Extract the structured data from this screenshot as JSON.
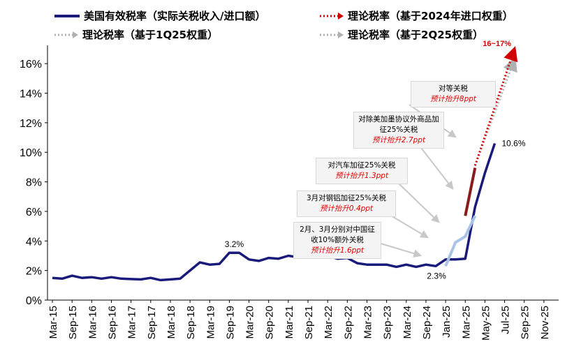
{
  "chart_data": {
    "type": "line",
    "yaxis": {
      "ticks": [
        "0%",
        "2%",
        "4%",
        "6%",
        "8%",
        "10%",
        "12%",
        "14%",
        "16%"
      ],
      "ylim": [
        0,
        17
      ]
    },
    "xaxis": {
      "tick_labels": [
        "Mar-15",
        "Sep-15",
        "Mar-16",
        "Sep-16",
        "Mar-17",
        "Sep-17",
        "Mar-18",
        "Sep-18",
        "Mar-19",
        "Sep-19",
        "Mar-20",
        "Sep-20",
        "Mar-21",
        "Sep-21",
        "Mar-22",
        "Sep-22",
        "Mar-23",
        "Sep-23",
        "Mar-24",
        "Sep-24",
        "Jan-25",
        "Mar-25",
        "May-25",
        "Jul-25",
        "Sep-25",
        "Nov-25"
      ]
    },
    "legend": {
      "effective": "美国有效税率（实际关税收入/进口额）",
      "theory2024": "理论税率（基于2024年进口权重）",
      "theory1q25": "理论税率（基于1Q25权重）",
      "theory2q25": "理论税率（基于2Q25权重）"
    },
    "series": [
      {
        "name": "美国有效税率（实际关税收入/进口额）",
        "color": "#1a1a7a",
        "points": [
          [
            0,
            1.5
          ],
          [
            1,
            1.45
          ],
          [
            2,
            1.65
          ],
          [
            3,
            1.5
          ],
          [
            4,
            1.55
          ],
          [
            5,
            1.45
          ],
          [
            6,
            1.55
          ],
          [
            7,
            1.45
          ],
          [
            8,
            1.42
          ],
          [
            9,
            1.4
          ],
          [
            10,
            1.5
          ],
          [
            11,
            1.35
          ],
          [
            12,
            1.4
          ],
          [
            13,
            1.45
          ],
          [
            14,
            2.0
          ],
          [
            15,
            2.55
          ],
          [
            16,
            2.4
          ],
          [
            17,
            2.45
          ],
          [
            18,
            3.2
          ],
          [
            19,
            3.2
          ],
          [
            20,
            2.75
          ],
          [
            21,
            2.65
          ],
          [
            22,
            2.85
          ],
          [
            23,
            2.8
          ],
          [
            24,
            3.0
          ],
          [
            25,
            2.9
          ],
          [
            26,
            3.0
          ],
          [
            27,
            3.05
          ],
          [
            28,
            3.0
          ],
          [
            29,
            2.8
          ],
          [
            30,
            2.85
          ],
          [
            31,
            2.5
          ],
          [
            32,
            2.4
          ],
          [
            33,
            2.4
          ],
          [
            34,
            2.4
          ],
          [
            35,
            2.25
          ],
          [
            36,
            2.4
          ],
          [
            37,
            2.25
          ],
          [
            38,
            2.4
          ],
          [
            39,
            2.3
          ],
          [
            40,
            2.75
          ],
          [
            41,
            2.75
          ],
          [
            42,
            2.8
          ],
          [
            43,
            6.3
          ],
          [
            44,
            8.6
          ],
          [
            45,
            10.6
          ]
        ]
      },
      {
        "name": "理论税率（基于1Q25权重）",
        "color": "#a9c3e8",
        "points": [
          [
            40,
            2.3
          ],
          [
            41,
            3.9
          ],
          [
            42,
            4.3
          ],
          [
            43,
            5.7
          ]
        ]
      },
      {
        "name": "理论税率（基于2024年进口权重）",
        "color": "#8b1a1a",
        "points": [
          [
            42,
            5.7
          ],
          [
            43,
            8.95
          ]
        ]
      },
      {
        "name": "理论税率（基于2Q25权重）",
        "color": "#b0b0b0",
        "points": [
          [
            43,
            9.1
          ],
          [
            47,
            16.3
          ]
        ]
      },
      {
        "name": "理论税率（基于2024年进口权重）projection",
        "color": "#d00000",
        "points": [
          [
            43,
            9.1
          ],
          [
            47,
            17.0
          ]
        ]
      }
    ],
    "data_labels": [
      {
        "text": "3.2%",
        "x": 18.5,
        "y": 3.2
      },
      {
        "text": "2.3%",
        "x": 39.5,
        "y": 2.3
      },
      {
        "text": "10.6%",
        "x": 45,
        "y": 10.6
      },
      {
        "text": "16~17%",
        "x": 47,
        "y": 17
      }
    ],
    "annotations": [
      {
        "title": "对等关税",
        "estimate": "预计抬升8ppt"
      },
      {
        "title": "对除美加墨协议外商品加征25%关税",
        "estimate": "预计抬升2.7ppt"
      },
      {
        "title": "对汽车加征25%关税",
        "estimate": "预计抬升1.3ppt"
      },
      {
        "title": "3月对钢铝加征25%关税",
        "estimate": "预计抬升0.4ppt"
      },
      {
        "title": "2月、3月分别对中国征收10%额外关税",
        "estimate": "预计抬升1.6ppt"
      }
    ]
  }
}
